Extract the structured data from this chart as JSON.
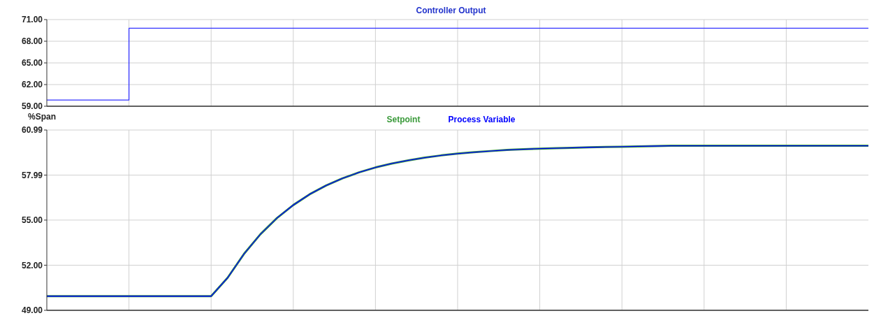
{
  "chart_data": [
    {
      "type": "step",
      "title": "Controller Output",
      "categories": [
        null,
        null,
        null,
        null,
        null,
        null,
        null,
        null,
        null,
        null,
        null,
        null,
        null,
        null,
        null,
        null,
        null,
        null,
        null,
        null,
        null,
        null,
        null,
        null,
        null,
        null,
        null,
        null,
        null,
        null,
        null,
        null,
        null,
        null,
        null,
        null,
        null,
        null,
        null,
        null,
        null,
        null,
        null,
        null,
        null,
        null,
        null,
        null,
        null,
        null,
        null
      ],
      "series": [
        {
          "color": "#3333ff",
          "values": [
            59.85,
            59.85,
            59.85,
            59.85,
            59.85,
            69.8,
            69.8,
            69.8,
            69.8,
            69.8,
            69.8,
            69.8,
            69.8,
            69.8,
            69.8,
            69.8,
            69.8,
            69.8,
            69.8,
            69.8,
            69.8,
            69.8,
            69.8,
            69.8,
            69.8,
            69.8,
            69.8,
            69.8,
            69.8,
            69.8,
            69.8,
            69.8,
            69.8,
            69.8,
            69.8,
            69.8,
            69.8,
            69.8,
            69.8,
            69.8,
            69.8,
            69.8,
            69.8,
            69.8,
            69.8,
            69.8,
            69.8,
            69.8,
            69.8,
            69.8,
            69.8
          ]
        }
      ],
      "ylim": [
        59,
        71
      ],
      "yticks": [
        {
          "value": 59,
          "label": "59.00"
        },
        {
          "value": 62,
          "label": "62.00"
        },
        {
          "value": 65,
          "label": "65.00"
        },
        {
          "value": 68,
          "label": "68.00"
        },
        {
          "value": 71,
          "label": "71.00"
        }
      ],
      "grid": true,
      "tick_labels": "y"
    },
    {
      "type": "line",
      "ylabel": "%Span",
      "categories": [
        null,
        null,
        null,
        null,
        null,
        null,
        null,
        null,
        null,
        null,
        null,
        null,
        null,
        null,
        null,
        null,
        null,
        null,
        null,
        null,
        null,
        null,
        null,
        null,
        null,
        null,
        null,
        null,
        null,
        null,
        null,
        null,
        null,
        null,
        null,
        null,
        null,
        null,
        null,
        null,
        null,
        null,
        null,
        null,
        null,
        null,
        null,
        null,
        null,
        null,
        null
      ],
      "series": [
        {
          "name": "Setpoint",
          "color": "#3a9a3a",
          "values": [
            49.94,
            49.94,
            49.94,
            49.94,
            49.94,
            49.94,
            49.94,
            49.94,
            49.94,
            49.94,
            49.94,
            51.16,
            52.75,
            54.06,
            55.13,
            56.0,
            56.72,
            57.3,
            57.78,
            58.17,
            58.5,
            58.76,
            58.97,
            59.15,
            59.3,
            59.42,
            59.51,
            59.59,
            59.66,
            59.71,
            59.75,
            59.78,
            59.81,
            59.84,
            59.86,
            59.88,
            59.9,
            59.92,
            59.94,
            59.94,
            59.94,
            59.94,
            59.94,
            59.94,
            59.94,
            59.94,
            59.94,
            59.94,
            59.94,
            59.94,
            59.94
          ]
        },
        {
          "name": "Process Variable",
          "color": "#0000ff",
          "values": [
            49.94,
            49.94,
            49.94,
            49.94,
            49.94,
            49.94,
            49.94,
            49.94,
            49.94,
            49.94,
            49.94,
            51.16,
            52.75,
            54.06,
            55.13,
            56.0,
            56.72,
            57.3,
            57.78,
            58.17,
            58.5,
            58.76,
            58.97,
            59.15,
            59.3,
            59.42,
            59.51,
            59.59,
            59.66,
            59.71,
            59.75,
            59.78,
            59.81,
            59.84,
            59.86,
            59.88,
            59.9,
            59.92,
            59.94,
            59.94,
            59.94,
            59.94,
            59.94,
            59.94,
            59.94,
            59.94,
            59.94,
            59.94,
            59.94,
            59.94,
            59.94
          ]
        }
      ],
      "ylim": [
        49,
        60.99
      ],
      "yticks": [
        {
          "value": 49,
          "label": "49.00"
        },
        {
          "value": 52,
          "label": "52.00"
        },
        {
          "value": 55,
          "label": "55.00"
        },
        {
          "value": 57.99,
          "label": "57.99"
        },
        {
          "value": 60.99,
          "label": "60.99"
        }
      ],
      "grid": true,
      "legend": "top",
      "tick_labels": "y"
    }
  ]
}
